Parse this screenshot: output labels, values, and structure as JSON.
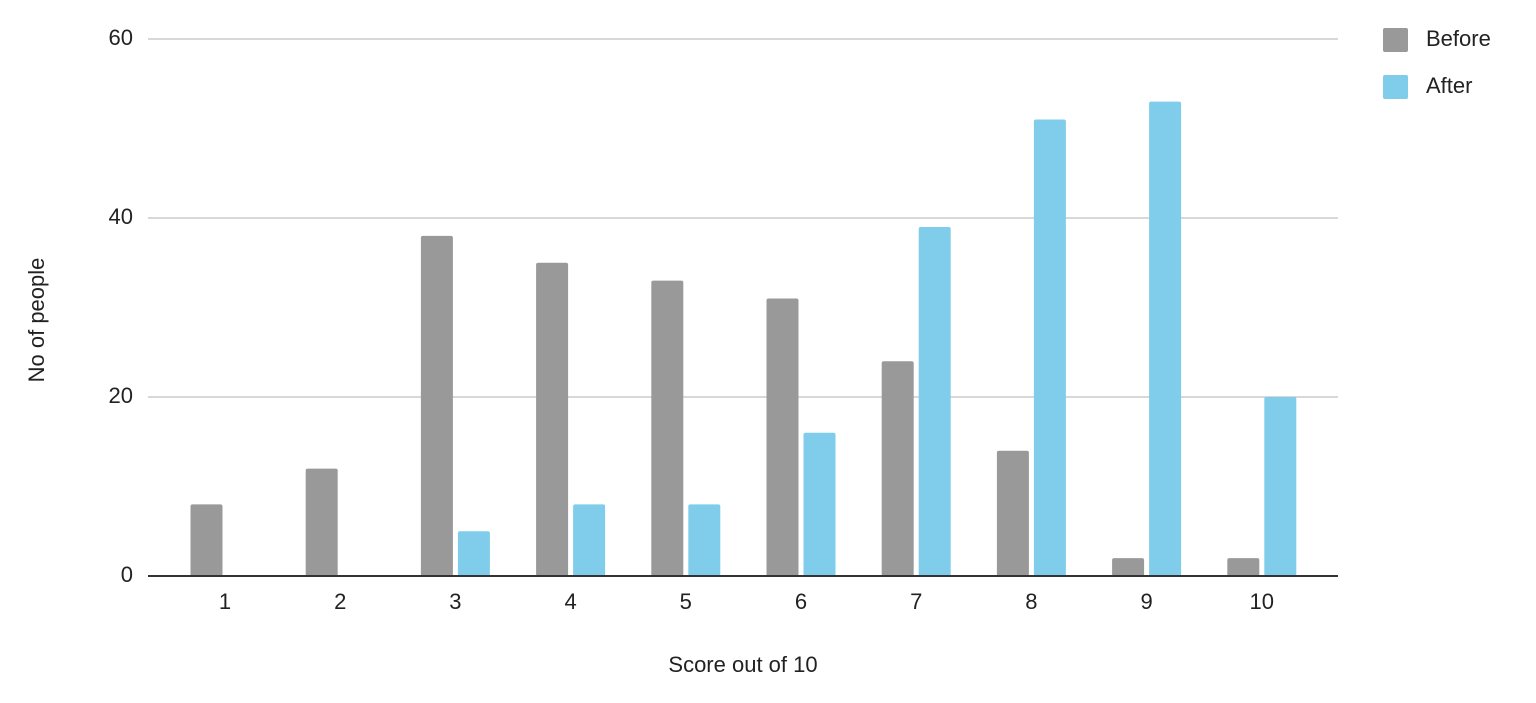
{
  "chart_data": {
    "type": "bar",
    "x_label": "Score out of 10",
    "y_label": "No of people",
    "categories": [
      1,
      2,
      3,
      4,
      5,
      6,
      7,
      8,
      9,
      10
    ],
    "series": [
      {
        "name": "Before",
        "color": "#999999",
        "values": [
          8,
          12,
          38,
          35,
          33,
          31,
          24,
          14,
          2,
          2
        ]
      },
      {
        "name": "After",
        "color": "#7fcdea",
        "values": [
          0,
          0,
          5,
          8,
          8,
          16,
          39,
          51,
          53,
          20
        ]
      }
    ],
    "ylim": [
      0,
      60
    ],
    "yticks": [
      0,
      20,
      40,
      60
    ],
    "grid": true,
    "legend": "top-right"
  }
}
